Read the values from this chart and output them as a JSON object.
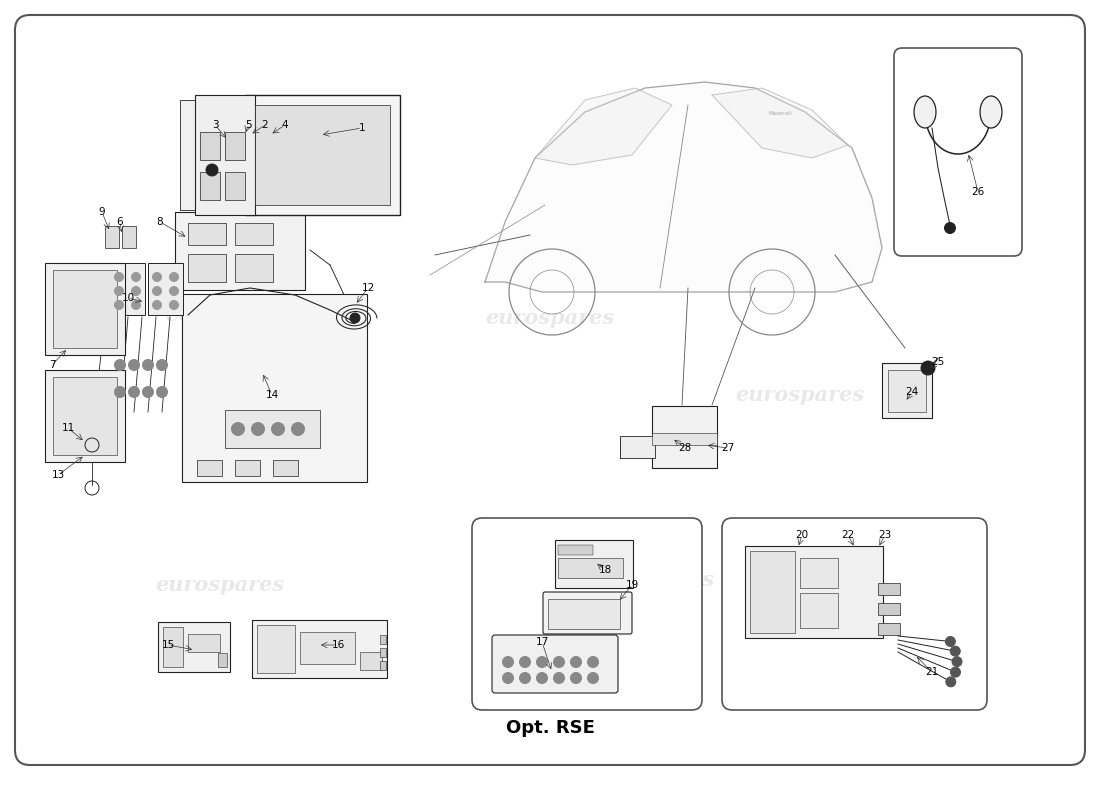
{
  "title": "Opt. RSE",
  "background_color": "#ffffff",
  "border_color": "#333333",
  "line_color": "#222222",
  "watermark_text": "eurospares",
  "figsize": [
    11.0,
    8.0
  ],
  "dpi": 100
}
